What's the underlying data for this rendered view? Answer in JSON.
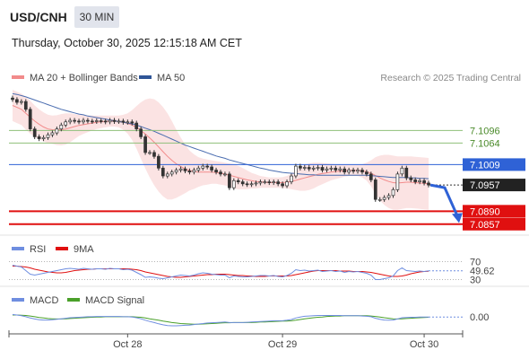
{
  "header": {
    "symbol": "USD/CNH",
    "timeframe": "30 MIN",
    "datetime": "Thursday, October 30, 2025 12:15:18 AM CET"
  },
  "colors": {
    "candle_up": "#ffffff",
    "candle_down": "#333333",
    "ma20": "#f28b8b",
    "bollinger_fill": "#fbe3e3",
    "ma50": "#4a6db0",
    "resistance": "#8fc07a",
    "pivot": "#2f62d6",
    "support": "#e01010",
    "rsi": "#6f8ee0",
    "rsi_ma": "#e01010",
    "macd": "#6f8ee0",
    "macd_signal": "#4aa02a",
    "arrow": "#2f62d6"
  },
  "chart_data": [
    {
      "type": "line",
      "panel": "price",
      "legend": [
        {
          "name": "MA 20 + Bollinger Bands",
          "color": "#f28b8b"
        },
        {
          "name": "MA 50",
          "color": "#2f5597"
        }
      ],
      "copyright": "Research © 2025 Trading Central",
      "levels": [
        {
          "label": "7.1096",
          "value": 7.1096,
          "kind": "resistance"
        },
        {
          "label": "7.1064",
          "value": 7.1064,
          "kind": "resistance"
        },
        {
          "label": "7.1009",
          "value": 7.1009,
          "kind": "pivot"
        },
        {
          "label": "7.0957",
          "value": 7.0957,
          "kind": "last"
        },
        {
          "label": "7.0890",
          "value": 7.089,
          "kind": "support"
        },
        {
          "label": "7.0857",
          "value": 7.0857,
          "kind": "support"
        }
      ],
      "ylim": [
        7.0845,
        7.12
      ],
      "x_ticks": [
        "Oct 28",
        "Oct 29",
        "Oct 30"
      ],
      "close": [
        7.1175,
        7.1168,
        7.117,
        7.115,
        7.11,
        7.108,
        7.1075,
        7.1078,
        7.1085,
        7.109,
        7.11,
        7.111,
        7.1118,
        7.1122,
        7.112,
        7.1118,
        7.1122,
        7.112,
        7.1119,
        7.1121,
        7.112,
        7.1118,
        7.1122,
        7.1119,
        7.112,
        7.1117,
        7.1118,
        7.1115,
        7.11,
        7.108,
        7.104,
        7.104,
        7.103,
        7.1,
        7.098,
        7.0985,
        7.099,
        7.0995,
        7.0998,
        7.0993,
        7.099,
        7.0995,
        7.1,
        7.1005,
        7.1003,
        7.0995,
        7.099,
        7.0985,
        7.0985,
        7.095,
        7.0968,
        7.0965,
        7.096,
        7.0958,
        7.096,
        7.0962,
        7.0965,
        7.0965,
        7.0963,
        7.0965,
        7.096,
        7.0955,
        7.0965,
        7.098,
        7.1005,
        7.1,
        7.1002,
        7.0998,
        7.1,
        7.1002,
        7.0995,
        7.0998,
        7.1,
        7.0995,
        7.0998,
        7.099,
        7.0995,
        7.0992,
        7.0995,
        7.099,
        7.0985,
        7.097,
        7.092,
        7.092,
        7.0925,
        7.093,
        7.0945,
        7.0985,
        7.1,
        7.0975,
        7.097,
        7.0965,
        7.0968,
        7.0962,
        7.0957
      ],
      "ma20": [
        7.116,
        7.1155,
        7.115,
        7.114,
        7.113,
        7.112,
        7.1112,
        7.1105,
        7.11,
        7.1098,
        7.1097,
        7.1098,
        7.11,
        7.1103,
        7.1106,
        7.1109,
        7.1111,
        7.1113,
        7.1115,
        7.1117,
        7.1118,
        7.1119,
        7.112,
        7.112,
        7.1119,
        7.1117,
        7.1114,
        7.111,
        7.1104,
        7.1096,
        7.1087,
        7.1077,
        7.1066,
        7.1054,
        7.1042,
        7.103,
        7.102,
        7.1011,
        7.1004,
        7.0998,
        7.0994,
        7.0991,
        7.099,
        7.099,
        7.099,
        7.099,
        7.0989,
        7.0987,
        7.0985,
        7.0982,
        7.0979,
        7.0976,
        7.0973,
        7.097,
        7.0968,
        7.0966,
        7.0965,
        7.0964,
        7.0963,
        7.0963,
        7.0963,
        7.0963,
        7.0964,
        7.0966,
        7.0969,
        7.0972,
        7.0975,
        7.0978,
        7.0981,
        7.0984,
        7.0986,
        7.0988,
        7.099,
        7.0991,
        7.0992,
        7.0993,
        7.0994,
        7.0994,
        7.0994,
        7.0993,
        7.0991,
        7.0987,
        7.0981,
        7.0975,
        7.097,
        7.0966,
        7.0963,
        7.0962,
        7.0963,
        7.0964,
        7.0964,
        7.0963,
        7.0962,
        7.0961,
        7.096
      ],
      "bb_upper": [
        7.12,
        7.1195,
        7.119,
        7.1182,
        7.1172,
        7.116,
        7.115,
        7.1142,
        7.1136,
        7.1134,
        7.1135,
        7.1138,
        7.114,
        7.114,
        7.1138,
        7.1136,
        7.1135,
        7.1134,
        7.1134,
        7.1134,
        7.1134,
        7.1134,
        7.1134,
        7.1134,
        7.1134,
        7.1136,
        7.114,
        7.1148,
        7.1158,
        7.1168,
        7.1175,
        7.1178,
        7.1176,
        7.1168,
        7.1156,
        7.114,
        7.112,
        7.1098,
        7.1078,
        7.106,
        7.1045,
        7.1035,
        7.1028,
        7.1024,
        7.1022,
        7.102,
        7.1018,
        7.1016,
        7.1014,
        7.1012,
        7.101,
        7.1006,
        7.1,
        7.0994,
        7.0988,
        7.0984,
        7.098,
        7.0978,
        7.0976,
        7.0976,
        7.0976,
        7.0977,
        7.098,
        7.0986,
        7.0994,
        7.1002,
        7.1008,
        7.1012,
        7.1014,
        7.1014,
        7.1013,
        7.1012,
        7.1011,
        7.101,
        7.1009,
        7.1008,
        7.1008,
        7.1008,
        7.1008,
        7.101,
        7.1014,
        7.102,
        7.1028,
        7.1032,
        7.1034,
        7.1034,
        7.1032,
        7.103,
        7.103,
        7.103,
        7.103,
        7.1029,
        7.1028,
        7.1027,
        7.1026
      ],
      "bb_lower": [
        7.112,
        7.1115,
        7.111,
        7.1098,
        7.1088,
        7.108,
        7.1074,
        7.1068,
        7.1064,
        7.1062,
        7.1059,
        7.1058,
        7.106,
        7.1066,
        7.1074,
        7.1082,
        7.1087,
        7.1092,
        7.1096,
        7.11,
        7.1102,
        7.1104,
        7.1106,
        7.1106,
        7.1104,
        7.1098,
        7.1088,
        7.1072,
        7.105,
        7.1024,
        7.0999,
        7.0976,
        7.0956,
        7.094,
        7.0928,
        7.092,
        7.092,
        7.0924,
        7.093,
        7.0936,
        7.0943,
        7.0947,
        7.0952,
        7.0956,
        7.0958,
        7.096,
        7.096,
        7.0958,
        7.0956,
        7.0952,
        7.0948,
        7.0946,
        7.0946,
        7.0946,
        7.0948,
        7.0948,
        7.095,
        7.095,
        7.095,
        7.095,
        7.095,
        7.0949,
        7.0948,
        7.0946,
        7.0944,
        7.0942,
        7.0942,
        7.0944,
        7.0948,
        7.0954,
        7.0959,
        7.0964,
        7.0969,
        7.0972,
        7.0975,
        7.0978,
        7.098,
        7.098,
        7.098,
        7.0976,
        7.0968,
        7.0954,
        7.0934,
        7.0918,
        7.0906,
        7.0898,
        7.0894,
        7.0894,
        7.0896,
        7.0898,
        7.0898,
        7.0897,
        7.0896,
        7.0895,
        7.0894
      ],
      "ma50": [
        7.119,
        7.1188,
        7.1185,
        7.1182,
        7.1178,
        7.1174,
        7.117,
        7.1166,
        7.1162,
        7.1158,
        7.1154,
        7.115,
        7.1147,
        7.1144,
        7.1141,
        7.1138,
        7.1136,
        7.1133,
        7.1131,
        7.1129,
        7.1127,
        7.1125,
        7.1123,
        7.1121,
        7.1119,
        7.1117,
        7.1115,
        7.1113,
        7.111,
        7.1106,
        7.1102,
        7.1098,
        7.1094,
        7.1089,
        7.1084,
        7.1079,
        7.1074,
        7.1069,
        7.1064,
        7.1059,
        7.1055,
        7.1051,
        7.1047,
        7.1043,
        7.1039,
        7.1035,
        7.1031,
        7.1028,
        7.1025,
        7.1021,
        7.1018,
        7.1015,
        7.1012,
        7.1009,
        7.1006,
        7.1003,
        7.1,
        7.0998,
        7.0995,
        7.0993,
        7.0991,
        7.0989,
        7.0988,
        7.0987,
        7.0986,
        7.0985,
        7.0984,
        7.0983,
        7.0983,
        7.0982,
        7.0982,
        7.0982,
        7.0982,
        7.0982,
        7.0982,
        7.0982,
        7.0982,
        7.0982,
        7.0982,
        7.0982,
        7.0982,
        7.0981,
        7.098,
        7.0979,
        7.0978,
        7.0977,
        7.0976,
        7.0976,
        7.0976,
        7.0976,
        7.0975,
        7.0975,
        7.0974,
        7.0974,
        7.0973
      ]
    },
    {
      "type": "line",
      "panel": "rsi",
      "legend": [
        {
          "name": "RSI",
          "color": "#6f8ee0"
        },
        {
          "name": "9MA",
          "color": "#e01010"
        }
      ],
      "levels": [
        70,
        30
      ],
      "current_label": "49.62",
      "current": 49.62,
      "ylim": [
        25,
        75
      ],
      "rsi": [
        62,
        60,
        58,
        50,
        42,
        40,
        42,
        44,
        46,
        48,
        50,
        52,
        54,
        55,
        54,
        53,
        55,
        54,
        53,
        54,
        54,
        53,
        55,
        54,
        54,
        52,
        53,
        51,
        46,
        41,
        35,
        36,
        35,
        33,
        32,
        34,
        36,
        38,
        40,
        39,
        38,
        40,
        43,
        45,
        44,
        42,
        41,
        40,
        40,
        34,
        38,
        37,
        36,
        36,
        37,
        38,
        39,
        39,
        38,
        39,
        37,
        36,
        39,
        44,
        52,
        50,
        51,
        49,
        50,
        51,
        48,
        49,
        50,
        48,
        49,
        46,
        48,
        47,
        48,
        46,
        44,
        40,
        30,
        30,
        32,
        34,
        38,
        50,
        56,
        50,
        49,
        48,
        49,
        48,
        49.62
      ],
      "rsi_ma": [
        60,
        60,
        59,
        58,
        56,
        53,
        51,
        49,
        47,
        46,
        45,
        45,
        46,
        48,
        50,
        51,
        52,
        53,
        53,
        54,
        54,
        54,
        54,
        54,
        54,
        54,
        54,
        53,
        52,
        50,
        47,
        45,
        43,
        41,
        39,
        37,
        36,
        35,
        35,
        36,
        37,
        38,
        39,
        40,
        41,
        41,
        42,
        42,
        42,
        41,
        40,
        39,
        39,
        38,
        38,
        37,
        37,
        37,
        38,
        38,
        38,
        38,
        38,
        39,
        41,
        43,
        45,
        47,
        49,
        50,
        50,
        50,
        50,
        50,
        49,
        49,
        49,
        48,
        48,
        48,
        47,
        46,
        44,
        42,
        40,
        38,
        37,
        37,
        38,
        40,
        43,
        45,
        47,
        48,
        48.5
      ]
    },
    {
      "type": "line",
      "panel": "macd",
      "legend": [
        {
          "name": "MACD",
          "color": "#6f8ee0"
        },
        {
          "name": "MACD Signal",
          "color": "#4aa02a"
        }
      ],
      "current_label": "0.00",
      "current": 0.0,
      "ylim": [
        -0.006,
        0.004
      ],
      "macd": [
        0.001,
        0.0008,
        0.0005,
        0.0001,
        -0.0004,
        -0.0008,
        -0.0011,
        -0.0012,
        -0.0012,
        -0.0011,
        -0.0009,
        -0.0007,
        -0.0005,
        -0.0003,
        -0.0002,
        -0.0001,
        0.0,
        0.0001,
        0.0001,
        0.0002,
        0.0002,
        0.0002,
        0.0002,
        0.0002,
        0.0002,
        0.0001,
        0.0001,
        0.0,
        -0.0003,
        -0.0007,
        -0.0013,
        -0.0018,
        -0.0022,
        -0.0027,
        -0.0031,
        -0.0034,
        -0.0035,
        -0.0035,
        -0.0034,
        -0.0033,
        -0.0032,
        -0.003,
        -0.0028,
        -0.0026,
        -0.0024,
        -0.0023,
        -0.0022,
        -0.0021,
        -0.002,
        -0.0022,
        -0.0022,
        -0.0022,
        -0.0022,
        -0.0021,
        -0.002,
        -0.0019,
        -0.0018,
        -0.0017,
        -0.0016,
        -0.0015,
        -0.0015,
        -0.0015,
        -0.0013,
        -0.001,
        -0.0004,
        0.0,
        0.0003,
        0.0004,
        0.0005,
        0.0006,
        0.0006,
        0.0006,
        0.0006,
        0.0006,
        0.0006,
        0.0005,
        0.0005,
        0.0005,
        0.0005,
        0.0004,
        0.0003,
        0.0001,
        -0.0005,
        -0.0009,
        -0.0012,
        -0.0013,
        -0.0012,
        -0.0008,
        -0.0003,
        -0.0002,
        -0.0001,
        -0.0001,
        0.0,
        0.0,
        0.0
      ],
      "macd_signal": [
        0.0008,
        0.0008,
        0.0007,
        0.0006,
        0.0004,
        0.0001,
        -0.0002,
        -0.0004,
        -0.0006,
        -0.0007,
        -0.0008,
        -0.0008,
        -0.0007,
        -0.0006,
        -0.0005,
        -0.0004,
        -0.0003,
        -0.0002,
        -0.0001,
        0.0,
        0.0,
        0.0001,
        0.0001,
        0.0001,
        0.0001,
        0.0001,
        0.0001,
        0.0001,
        0.0,
        -0.0001,
        -0.0004,
        -0.0007,
        -0.001,
        -0.0013,
        -0.0016,
        -0.0019,
        -0.0022,
        -0.0024,
        -0.0026,
        -0.0027,
        -0.0028,
        -0.0029,
        -0.0029,
        -0.0028,
        -0.0027,
        -0.0026,
        -0.0025,
        -0.0024,
        -0.0023,
        -0.0023,
        -0.0022,
        -0.0022,
        -0.0022,
        -0.0022,
        -0.0022,
        -0.0021,
        -0.002,
        -0.002,
        -0.0019,
        -0.0018,
        -0.0017,
        -0.0016,
        -0.0016,
        -0.0015,
        -0.0013,
        -0.001,
        -0.0007,
        -0.0005,
        -0.0003,
        -0.0001,
        0.0,
        0.0002,
        0.0003,
        0.0004,
        0.0004,
        0.0005,
        0.0005,
        0.0005,
        0.0005,
        0.0005,
        0.0005,
        0.0004,
        0.0002,
        0.0,
        -0.0003,
        -0.0005,
        -0.0007,
        -0.0008,
        -0.0007,
        -0.0006,
        -0.0005,
        -0.0004,
        -0.0003,
        -0.0002,
        -0.0001
      ]
    }
  ]
}
